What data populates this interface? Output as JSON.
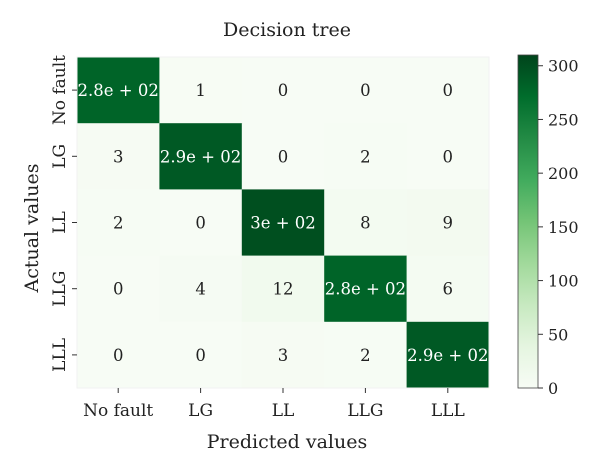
{
  "chart_data": {
    "type": "heatmap",
    "title": "Decision tree",
    "xlabel": "Predicted values",
    "ylabel": "Actual values",
    "x_categories": [
      "No fault",
      "LG",
      "LL",
      "LLG",
      "LLL"
    ],
    "y_categories": [
      "No fault",
      "LG",
      "LL",
      "LLG",
      "LLL"
    ],
    "values": [
      [
        280,
        1,
        0,
        0,
        0
      ],
      [
        3,
        290,
        0,
        2,
        0
      ],
      [
        2,
        0,
        300,
        8,
        9
      ],
      [
        0,
        4,
        12,
        280,
        6
      ],
      [
        0,
        0,
        3,
        2,
        290
      ]
    ],
    "cell_labels": [
      [
        "2.8e + 02",
        "1",
        "0",
        "0",
        "0"
      ],
      [
        "3",
        "2.9e + 02",
        "0",
        "2",
        "0"
      ],
      [
        "2",
        "0",
        "3e + 02",
        "8",
        "9"
      ],
      [
        "0",
        "4",
        "12",
        "2.8e + 02",
        "6"
      ],
      [
        "0",
        "0",
        "3",
        "2",
        "2.9e + 02"
      ]
    ],
    "colorbar": {
      "min": 0,
      "max": 310,
      "ticks": [
        0,
        50,
        100,
        150,
        200,
        250,
        300
      ],
      "colors": [
        "#f7fcf5",
        "#e5f5e0",
        "#c7e9c0",
        "#a1d99b",
        "#74c476",
        "#41ab5d",
        "#238b45",
        "#006d2c",
        "#00441b"
      ]
    },
    "grid": false
  }
}
